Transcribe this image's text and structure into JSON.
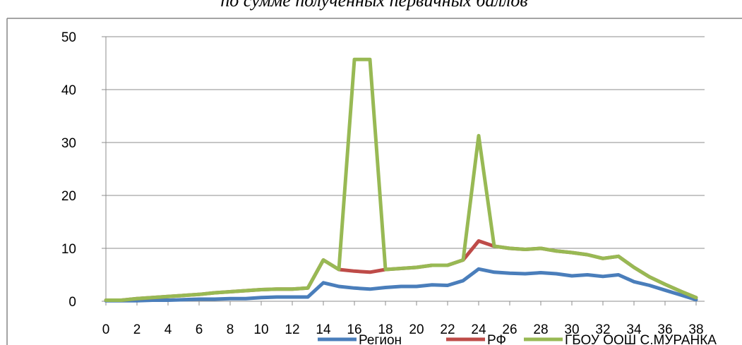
{
  "chart_data": {
    "type": "line",
    "title": "по сумме полученных первичных баллов",
    "xlabel": "",
    "ylabel": "",
    "x": [
      0,
      1,
      2,
      3,
      4,
      5,
      6,
      7,
      8,
      9,
      10,
      11,
      12,
      13,
      14,
      15,
      16,
      17,
      18,
      19,
      20,
      21,
      22,
      23,
      24,
      25,
      26,
      27,
      28,
      29,
      30,
      31,
      32,
      33,
      34,
      35,
      36,
      37,
      38
    ],
    "x_tick_labels": [
      "0",
      "2",
      "4",
      "6",
      "8",
      "10",
      "12",
      "14",
      "16",
      "18",
      "20",
      "22",
      "24",
      "26",
      "28",
      "30",
      "32",
      "34",
      "36",
      "38"
    ],
    "y_tick_labels": [
      "0",
      "10",
      "20",
      "30",
      "40",
      "50"
    ],
    "xlim": [
      0,
      38
    ],
    "ylim": [
      0,
      50
    ],
    "y_ticks": [
      0,
      10,
      20,
      30,
      40,
      50
    ],
    "grid": "horizontal",
    "legend_position": "bottom",
    "series": [
      {
        "name": "Регион",
        "color": "#4a7ebb",
        "values": [
          0.1,
          0.1,
          0.1,
          0.2,
          0.2,
          0.3,
          0.4,
          0.4,
          0.5,
          0.5,
          0.7,
          0.8,
          0.8,
          0.8,
          3.5,
          2.8,
          2.5,
          2.3,
          2.6,
          2.8,
          2.8,
          3.1,
          3.0,
          3.9,
          6.1,
          5.5,
          5.3,
          5.2,
          5.4,
          5.2,
          4.8,
          5.0,
          4.7,
          5.0,
          3.7,
          3.0,
          2.1,
          1.2,
          0.3
        ]
      },
      {
        "name": "РФ",
        "color": "#be4b48",
        "values": [
          0.2,
          0.2,
          0.5,
          0.7,
          0.9,
          1.1,
          1.3,
          1.6,
          1.8,
          2.0,
          2.2,
          2.3,
          2.3,
          2.5,
          7.8,
          6.0,
          5.7,
          5.5,
          6.0,
          6.2,
          6.4,
          6.8,
          6.8,
          7.8,
          11.4,
          10.4,
          10.0,
          9.8,
          10.0,
          9.5,
          9.2,
          8.8,
          8.1,
          8.5,
          6.4,
          4.6,
          3.2,
          1.9,
          0.7
        ]
      },
      {
        "name": "ГБОУ ООШ С.МУРАНКА",
        "color": "#98b954",
        "values": [
          0.2,
          0.2,
          0.5,
          0.7,
          0.9,
          1.1,
          1.3,
          1.6,
          1.8,
          2.0,
          2.2,
          2.3,
          2.3,
          2.5,
          7.8,
          6.0,
          45.7,
          45.7,
          6.0,
          6.2,
          6.4,
          6.8,
          6.8,
          7.8,
          31.3,
          10.4,
          10.0,
          9.8,
          10.0,
          9.5,
          9.2,
          8.8,
          8.1,
          8.5,
          6.4,
          4.6,
          3.2,
          1.9,
          0.7
        ]
      }
    ]
  }
}
